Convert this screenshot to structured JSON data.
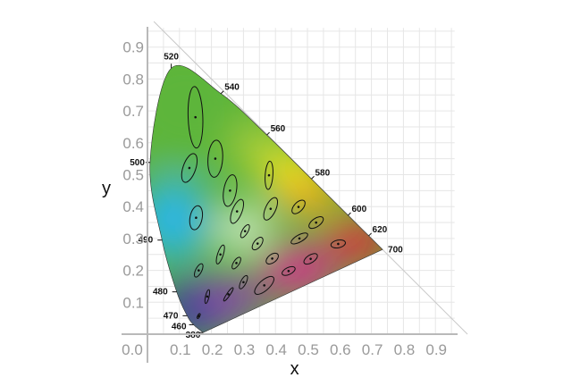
{
  "chart_data": {
    "type": "scatter",
    "title": "",
    "xlabel": "x",
    "ylabel": "y",
    "xlim": [
      0.0,
      0.9
    ],
    "ylim": [
      0.0,
      0.9
    ],
    "x_ticks": [
      "0.0",
      "0.1",
      "0.2",
      "0.3",
      "0.4",
      "0.5",
      "0.6",
      "0.7",
      "0.8",
      "0.9"
    ],
    "y_ticks": [
      "0.1",
      "0.2",
      "0.3",
      "0.4",
      "0.5",
      "0.6",
      "0.7",
      "0.8",
      "0.9"
    ],
    "grid": true,
    "spectral_locus": [
      {
        "nm": "380",
        "x": 0.1741,
        "y": 0.005
      },
      {
        "nm": "460",
        "x": 0.144,
        "y": 0.0297
      },
      {
        "nm": "470",
        "x": 0.1241,
        "y": 0.0578
      },
      {
        "nm": "480",
        "x": 0.0913,
        "y": 0.1327
      },
      {
        "nm": "490",
        "x": 0.0454,
        "y": 0.295
      },
      {
        "nm": "500",
        "x": 0.0082,
        "y": 0.5384
      },
      {
        "nm": "520",
        "x": 0.0743,
        "y": 0.8338
      },
      {
        "nm": "540",
        "x": 0.2296,
        "y": 0.7543
      },
      {
        "nm": "560",
        "x": 0.3731,
        "y": 0.6245
      },
      {
        "nm": "580",
        "x": 0.5125,
        "y": 0.4866
      },
      {
        "nm": "600",
        "x": 0.627,
        "y": 0.3725
      },
      {
        "nm": "620",
        "x": 0.6915,
        "y": 0.3083
      },
      {
        "nm": "700",
        "x": 0.7347,
        "y": 0.2653
      }
    ],
    "macadam_ellipses": [
      {
        "x": 0.16,
        "y": 0.057,
        "a": 0.0085,
        "b": 0.0035,
        "angle_deg": 62.5
      },
      {
        "x": 0.187,
        "y": 0.118,
        "a": 0.022,
        "b": 0.0055,
        "angle_deg": 77
      },
      {
        "x": 0.253,
        "y": 0.125,
        "a": 0.025,
        "b": 0.005,
        "angle_deg": 55.5
      },
      {
        "x": 0.15,
        "y": 0.68,
        "a": 0.096,
        "b": 0.023,
        "angle_deg": 92
      },
      {
        "x": 0.131,
        "y": 0.521,
        "a": 0.047,
        "b": 0.02,
        "angle_deg": 71
      },
      {
        "x": 0.212,
        "y": 0.55,
        "a": 0.058,
        "b": 0.023,
        "angle_deg": 86
      },
      {
        "x": 0.258,
        "y": 0.45,
        "a": 0.05,
        "b": 0.02,
        "angle_deg": 80
      },
      {
        "x": 0.152,
        "y": 0.365,
        "a": 0.038,
        "b": 0.019,
        "angle_deg": 79
      },
      {
        "x": 0.28,
        "y": 0.385,
        "a": 0.04,
        "b": 0.015,
        "angle_deg": 68
      },
      {
        "x": 0.38,
        "y": 0.498,
        "a": 0.044,
        "b": 0.012,
        "angle_deg": 86
      },
      {
        "x": 0.16,
        "y": 0.2,
        "a": 0.023,
        "b": 0.0095,
        "angle_deg": 63
      },
      {
        "x": 0.228,
        "y": 0.25,
        "a": 0.031,
        "b": 0.009,
        "angle_deg": 72
      },
      {
        "x": 0.305,
        "y": 0.323,
        "a": 0.023,
        "b": 0.009,
        "angle_deg": 60
      },
      {
        "x": 0.385,
        "y": 0.393,
        "a": 0.038,
        "b": 0.016,
        "angle_deg": 65
      },
      {
        "x": 0.472,
        "y": 0.399,
        "a": 0.026,
        "b": 0.014,
        "angle_deg": 47
      },
      {
        "x": 0.527,
        "y": 0.35,
        "a": 0.026,
        "b": 0.013,
        "angle_deg": 35
      },
      {
        "x": 0.475,
        "y": 0.3,
        "a": 0.029,
        "b": 0.011,
        "angle_deg": 29
      },
      {
        "x": 0.51,
        "y": 0.236,
        "a": 0.024,
        "b": 0.012,
        "angle_deg": 33
      },
      {
        "x": 0.596,
        "y": 0.283,
        "a": 0.023,
        "b": 0.012,
        "angle_deg": 11
      },
      {
        "x": 0.344,
        "y": 0.284,
        "a": 0.023,
        "b": 0.012,
        "angle_deg": 53
      },
      {
        "x": 0.39,
        "y": 0.237,
        "a": 0.022,
        "b": 0.013,
        "angle_deg": 38
      },
      {
        "x": 0.441,
        "y": 0.198,
        "a": 0.022,
        "b": 0.011,
        "angle_deg": 26
      },
      {
        "x": 0.278,
        "y": 0.223,
        "a": 0.021,
        "b": 0.009,
        "angle_deg": 57
      },
      {
        "x": 0.3,
        "y": 0.163,
        "a": 0.023,
        "b": 0.0085,
        "angle_deg": 63
      },
      {
        "x": 0.365,
        "y": 0.153,
        "a": 0.038,
        "b": 0.016,
        "angle_deg": 42
      }
    ],
    "colors": {
      "grid": "#e6e6e6",
      "axis": "#b9b9b9",
      "tick_label": "#9a9a9a",
      "ellipse": "#111111",
      "gamut_green": "#5db53b",
      "gamut_blue": "#2b3f9b",
      "gamut_red": "#e8223a",
      "gamut_yellow": "#f6e51e",
      "gamut_cyan": "#2bb6e6",
      "gamut_magenta": "#d62f8f",
      "white_point": "#ffffff"
    }
  }
}
